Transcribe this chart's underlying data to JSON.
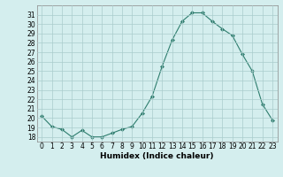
{
  "x": [
    0,
    1,
    2,
    3,
    4,
    5,
    6,
    7,
    8,
    9,
    10,
    11,
    12,
    13,
    14,
    15,
    16,
    17,
    18,
    19,
    20,
    21,
    22,
    23
  ],
  "y": [
    20.2,
    19.1,
    18.8,
    18.0,
    18.7,
    18.0,
    18.0,
    18.4,
    18.8,
    19.1,
    20.5,
    22.3,
    25.5,
    28.3,
    30.3,
    31.2,
    31.2,
    30.3,
    29.5,
    28.8,
    26.8,
    25.0,
    21.5,
    19.8
  ],
  "line_color": "#2e7d6e",
  "marker": "D",
  "marker_size": 2,
  "bg_color": "#d4eeee",
  "grid_color": "#aacccc",
  "xlabel": "Humidex (Indice chaleur)",
  "ylim": [
    17.5,
    32
  ],
  "xlim": [
    -0.5,
    23.5
  ],
  "xticks": [
    0,
    1,
    2,
    3,
    4,
    5,
    6,
    7,
    8,
    9,
    10,
    11,
    12,
    13,
    14,
    15,
    16,
    17,
    18,
    19,
    20,
    21,
    22,
    23
  ],
  "yticks": [
    18,
    19,
    20,
    21,
    22,
    23,
    24,
    25,
    26,
    27,
    28,
    29,
    30,
    31
  ],
  "label_fontsize": 6.5,
  "tick_fontsize": 5.5
}
